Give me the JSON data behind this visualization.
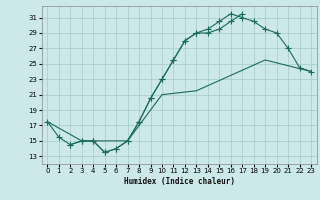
{
  "xlabel": "Humidex (Indice chaleur)",
  "ylabel": "",
  "background_color": "#cce8e8",
  "grid_color": "#aacfcf",
  "line_color": "#1a6b5a",
  "xlim": [
    -0.5,
    23.5
  ],
  "ylim": [
    12,
    32.5
  ],
  "xticks": [
    0,
    1,
    2,
    3,
    4,
    5,
    6,
    7,
    8,
    9,
    10,
    11,
    12,
    13,
    14,
    15,
    16,
    17,
    18,
    19,
    20,
    21,
    22,
    23
  ],
  "yticks": [
    13,
    15,
    17,
    19,
    21,
    23,
    25,
    27,
    29,
    31
  ],
  "line1_x": [
    0,
    1,
    2,
    3,
    4,
    5,
    6,
    7,
    8,
    9,
    10,
    11,
    12,
    13,
    14,
    15,
    16,
    17
  ],
  "line1_y": [
    17.5,
    15.5,
    14.5,
    15.0,
    15.0,
    13.5,
    14.0,
    15.0,
    17.5,
    20.5,
    23.0,
    25.5,
    28.0,
    29.0,
    29.0,
    29.5,
    30.5,
    31.5
  ],
  "line2_x": [
    2,
    3,
    4,
    5,
    6,
    7,
    8,
    9,
    10,
    11,
    12,
    13,
    14,
    15,
    16,
    17,
    18,
    19,
    20,
    21,
    22,
    23
  ],
  "line2_y": [
    14.5,
    15.0,
    15.0,
    13.5,
    14.0,
    15.0,
    17.5,
    20.5,
    23.0,
    25.5,
    28.0,
    29.0,
    29.5,
    30.5,
    31.5,
    31.0,
    30.5,
    29.5,
    29.0,
    27.0,
    24.5,
    24.0
  ],
  "line3_x": [
    0,
    3,
    7,
    10,
    13,
    16,
    19,
    23
  ],
  "line3_y": [
    17.5,
    15.0,
    15.0,
    21.0,
    21.5,
    23.5,
    25.5,
    24.0
  ]
}
